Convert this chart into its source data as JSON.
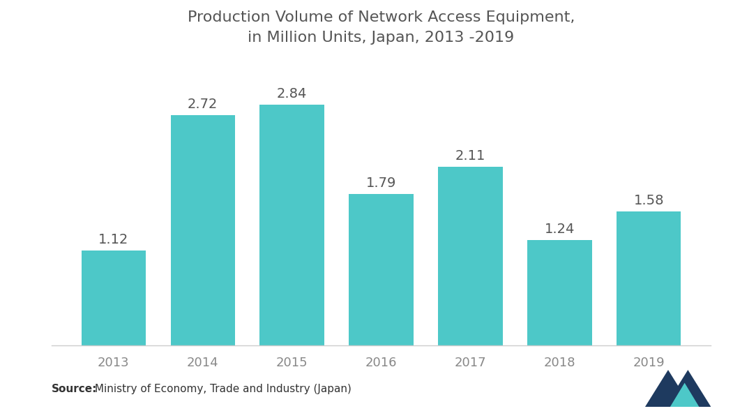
{
  "title_line1": "Production Volume of Network Access Equipment,",
  "title_line2": "in Million Units, Japan, 2013 -2019",
  "categories": [
    "2013",
    "2014",
    "2015",
    "2016",
    "2017",
    "2018",
    "2019"
  ],
  "values": [
    1.12,
    2.72,
    2.84,
    1.79,
    2.11,
    1.24,
    1.58
  ],
  "bar_color": "#4DC8C8",
  "background_color": "#ffffff",
  "title_color": "#555555",
  "label_color": "#555555",
  "tick_color": "#888888",
  "source_bold": "Source:",
  "source_rest": " Ministry of Economy, Trade and Industry (Japan)",
  "ylim": [
    0,
    3.4
  ],
  "bar_width": 0.72,
  "title_fontsize": 16,
  "label_fontsize": 14,
  "tick_fontsize": 13,
  "source_fontsize": 11
}
